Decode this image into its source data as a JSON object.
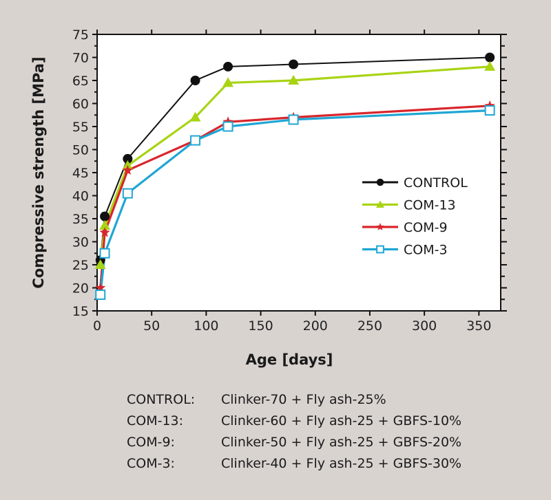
{
  "chart_data": {
    "type": "line",
    "title": "",
    "xlabel": "Age [days]",
    "ylabel": "Compressive strength [MPa]",
    "xlim": [
      0,
      370
    ],
    "ylim": [
      15,
      75
    ],
    "xticks": [
      0,
      50,
      100,
      150,
      200,
      250,
      300,
      350
    ],
    "yticks": [
      15,
      20,
      25,
      30,
      35,
      40,
      45,
      50,
      55,
      60,
      65,
      70,
      75
    ],
    "grid": false,
    "legend_position": "center-right",
    "x": [
      3,
      7,
      28,
      90,
      120,
      180,
      360
    ],
    "series": [
      {
        "name": "CONTROL",
        "color": "#111111",
        "marker": "circle",
        "values": [
          26,
          35.5,
          48,
          65,
          68,
          68.5,
          70
        ]
      },
      {
        "name": "COM-13",
        "color": "#a8d414",
        "marker": "triangle",
        "values": [
          25,
          33.5,
          46.5,
          57,
          64.5,
          65,
          68
        ]
      },
      {
        "name": "COM-9",
        "color": "#d8262c",
        "marker": "star",
        "values": [
          20,
          32,
          45.5,
          52,
          56,
          57,
          59.5
        ]
      },
      {
        "name": "COM-3",
        "color": "#1fa6d4",
        "marker": "open-square",
        "values": [
          18.5,
          27.5,
          40.5,
          52,
          55,
          56.5,
          58.5
        ]
      }
    ]
  },
  "notes": [
    {
      "key": "CONTROL:",
      "value": "Clinker-70 + Fly ash-25%"
    },
    {
      "key": "COM-13:",
      "value": "Clinker-60 + Fly ash-25 + GBFS-10%"
    },
    {
      "key": "COM-9:",
      "value": "Clinker-50 + Fly ash-25 + GBFS-20%"
    },
    {
      "key": "COM-3:",
      "value": "Clinker-40 + Fly ash-25 + GBFS-30%"
    }
  ]
}
